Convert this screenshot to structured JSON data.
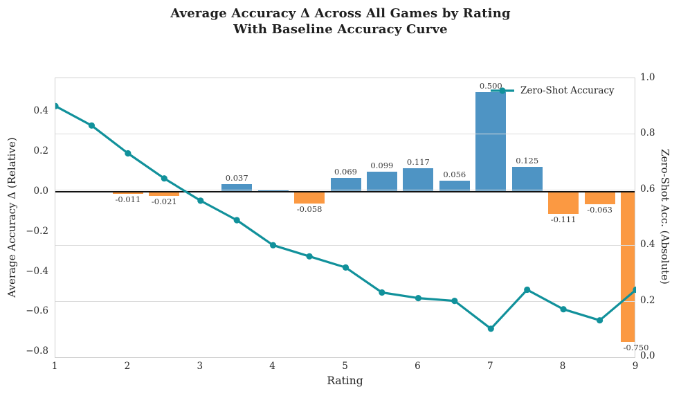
{
  "title": {
    "line1": "Average Accuracy Δ Across All Games by Rating",
    "line2": "With Baseline Accuracy Curve"
  },
  "chart_data": {
    "type": "combo_bar_line",
    "title": "Average Accuracy Δ Across All Games by Rating — With Baseline Accuracy Curve",
    "x_axis": {
      "label": "Rating",
      "tick_labels": [
        "1",
        "2",
        "3",
        "4",
        "5",
        "6",
        "7",
        "8",
        "9"
      ],
      "tick_values": [
        1,
        2,
        3,
        4,
        5,
        6,
        7,
        8,
        9
      ],
      "range": [
        1,
        9
      ]
    },
    "left_axis": {
      "label": "Average Accuracy Δ (Relative)",
      "tick_labels": [
        "0.4",
        "0.2",
        "0.0",
        "−0.2",
        "−0.4",
        "−0.6",
        "−0.8"
      ],
      "tick_values": [
        0.4,
        0.2,
        0.0,
        -0.2,
        -0.4,
        -0.6,
        -0.8
      ],
      "range": [
        -0.83,
        0.57
      ],
      "zero_line": true
    },
    "right_axis": {
      "label": "Zero-Shot Acc. (Absolute)",
      "tick_labels": [
        "1.0",
        "0.8",
        "0.6",
        "0.4",
        "0.2",
        "0.0"
      ],
      "tick_values": [
        1.0,
        0.8,
        0.6,
        0.4,
        0.2,
        0.0
      ],
      "range": [
        0.0,
        1.0
      ],
      "grid": true
    },
    "bars": {
      "name": "Average Accuracy Delta",
      "axis": "left",
      "x": [
        2,
        2.5,
        3,
        3.5,
        4,
        4.5,
        5,
        5.5,
        6,
        6.5,
        7,
        7.5,
        8,
        8.5,
        9
      ],
      "values": [
        -0.011,
        -0.021,
        -0.005,
        0.037,
        0.008,
        -0.058,
        0.069,
        0.099,
        0.117,
        0.056,
        0.5,
        0.125,
        -0.111,
        -0.063,
        -0.75
      ],
      "labels": [
        "-0.011",
        "-0.021",
        "",
        "0.037",
        "",
        "-0.058",
        "0.069",
        "0.099",
        "0.117",
        "0.056",
        "0.500",
        "0.125",
        "-0.111",
        "-0.063",
        "-0.750"
      ],
      "bar_width_rating_units": 0.42,
      "color_positive": "#4E94C4",
      "color_negative": "#FB9942"
    },
    "line": {
      "name": "Zero-Shot Accuracy",
      "axis": "right",
      "color": "#11919B",
      "x": [
        1,
        1.5,
        2,
        2.5,
        3,
        3.5,
        4,
        4.5,
        5,
        5.5,
        6,
        6.5,
        7,
        7.5,
        8,
        8.5,
        9
      ],
      "values": [
        0.9,
        0.83,
        0.73,
        0.64,
        0.56,
        0.49,
        0.4,
        0.36,
        0.32,
        0.23,
        0.21,
        0.2,
        0.1,
        0.24,
        0.17,
        0.13,
        0.24
      ]
    },
    "legend": {
      "position": "upper right inside plot",
      "entries": [
        {
          "label": "Zero-Shot Accuracy",
          "marker": "line-with-dot",
          "color": "#11919B"
        }
      ]
    },
    "grid_on": true,
    "colors": {
      "bar_positive": "#4E94C4",
      "bar_negative": "#FB9942",
      "line": "#11919B",
      "gridline": "#dcdcdc",
      "spine": "#cfcfcf",
      "zero_line": "#111111",
      "text": "#262626"
    }
  }
}
